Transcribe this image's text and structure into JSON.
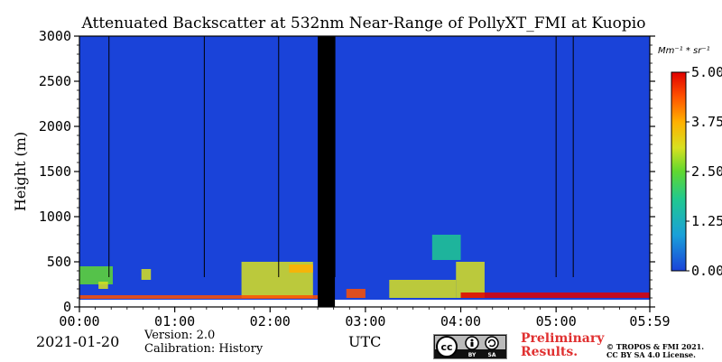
{
  "figure": {
    "title": "Attenuated Backscatter at 532nm Near-Range of PollyXT_FMI at Kuopio",
    "date": "2021-01-20",
    "version_line": "Version: 2.0",
    "calibration_line": "Calibration: History",
    "xlabel_utc": "UTC",
    "preliminary_line1": "Preliminary",
    "preliminary_line2": "Results.",
    "copyright_line1": "© TROPOS & FMI 2021.",
    "copyright_line2": "CC BY SA 4.0 License.",
    "cc_badge": {
      "label_cc": "cc",
      "label_by": "BY",
      "label_sa": "SA"
    }
  },
  "chart_data": {
    "type": "heatmap",
    "title": "Attenuated Backscatter at 532nm Near-Range of PollyXT_FMI at Kuopio",
    "ylabel": "Height (m)",
    "xlabel": "UTC",
    "x_range_hours": [
      0,
      5.983
    ],
    "x_ticks": [
      {
        "hour": 0,
        "label": "00:00"
      },
      {
        "hour": 1,
        "label": "01:00"
      },
      {
        "hour": 2,
        "label": "02:00"
      },
      {
        "hour": 3,
        "label": "03:00"
      },
      {
        "hour": 4,
        "label": "04:00"
      },
      {
        "hour": 5,
        "label": "05:00"
      },
      {
        "hour": 5.983,
        "label": "05:59"
      }
    ],
    "ylim": [
      0,
      3000
    ],
    "y_ticks": [
      0,
      500,
      1000,
      1500,
      2000,
      2500,
      3000
    ],
    "colorbar": {
      "unit_label": "Mm⁻¹ * sr⁻¹",
      "range": [
        0.0,
        5.0
      ],
      "ticks": [
        "0.00",
        "1.25",
        "2.50",
        "3.75",
        "5.00"
      ]
    },
    "no_data_gaps_hours": [
      [
        2.5,
        2.68
      ]
    ],
    "vertical_marker_lines_hours": [
      0.31,
      1.31,
      2.09,
      2.68,
      5.0,
      5.18
    ],
    "features": [
      {
        "hours": [
          0.0,
          0.35
        ],
        "heights_m": [
          250,
          450
        ],
        "value": 3.0
      },
      {
        "hours": [
          0.65,
          0.75
        ],
        "heights_m": [
          300,
          420
        ],
        "value": 3.5
      },
      {
        "hours": [
          0.2,
          0.3
        ],
        "heights_m": [
          200,
          280
        ],
        "value": 3.2
      },
      {
        "hours": [
          1.7,
          2.45
        ],
        "heights_m": [
          100,
          500
        ],
        "value": 3.5
      },
      {
        "hours": [
          2.2,
          2.45
        ],
        "heights_m": [
          380,
          470
        ],
        "value": 4.0
      },
      {
        "hours": [
          2.8,
          3.0
        ],
        "heights_m": [
          100,
          200
        ],
        "value": 4.5
      },
      {
        "hours": [
          3.25,
          3.95
        ],
        "heights_m": [
          100,
          300
        ],
        "value": 3.2
      },
      {
        "hours": [
          3.7,
          4.0
        ],
        "heights_m": [
          520,
          800
        ],
        "value": 2.4
      },
      {
        "hours": [
          3.95,
          4.25
        ],
        "heights_m": [
          100,
          500
        ],
        "value": 3.3
      },
      {
        "hours": [
          4.0,
          5.98
        ],
        "heights_m": [
          100,
          160
        ],
        "value": 5.0
      },
      {
        "hours": [
          0.0,
          2.5
        ],
        "heights_m": [
          90,
          130
        ],
        "value": 4.6
      }
    ]
  }
}
